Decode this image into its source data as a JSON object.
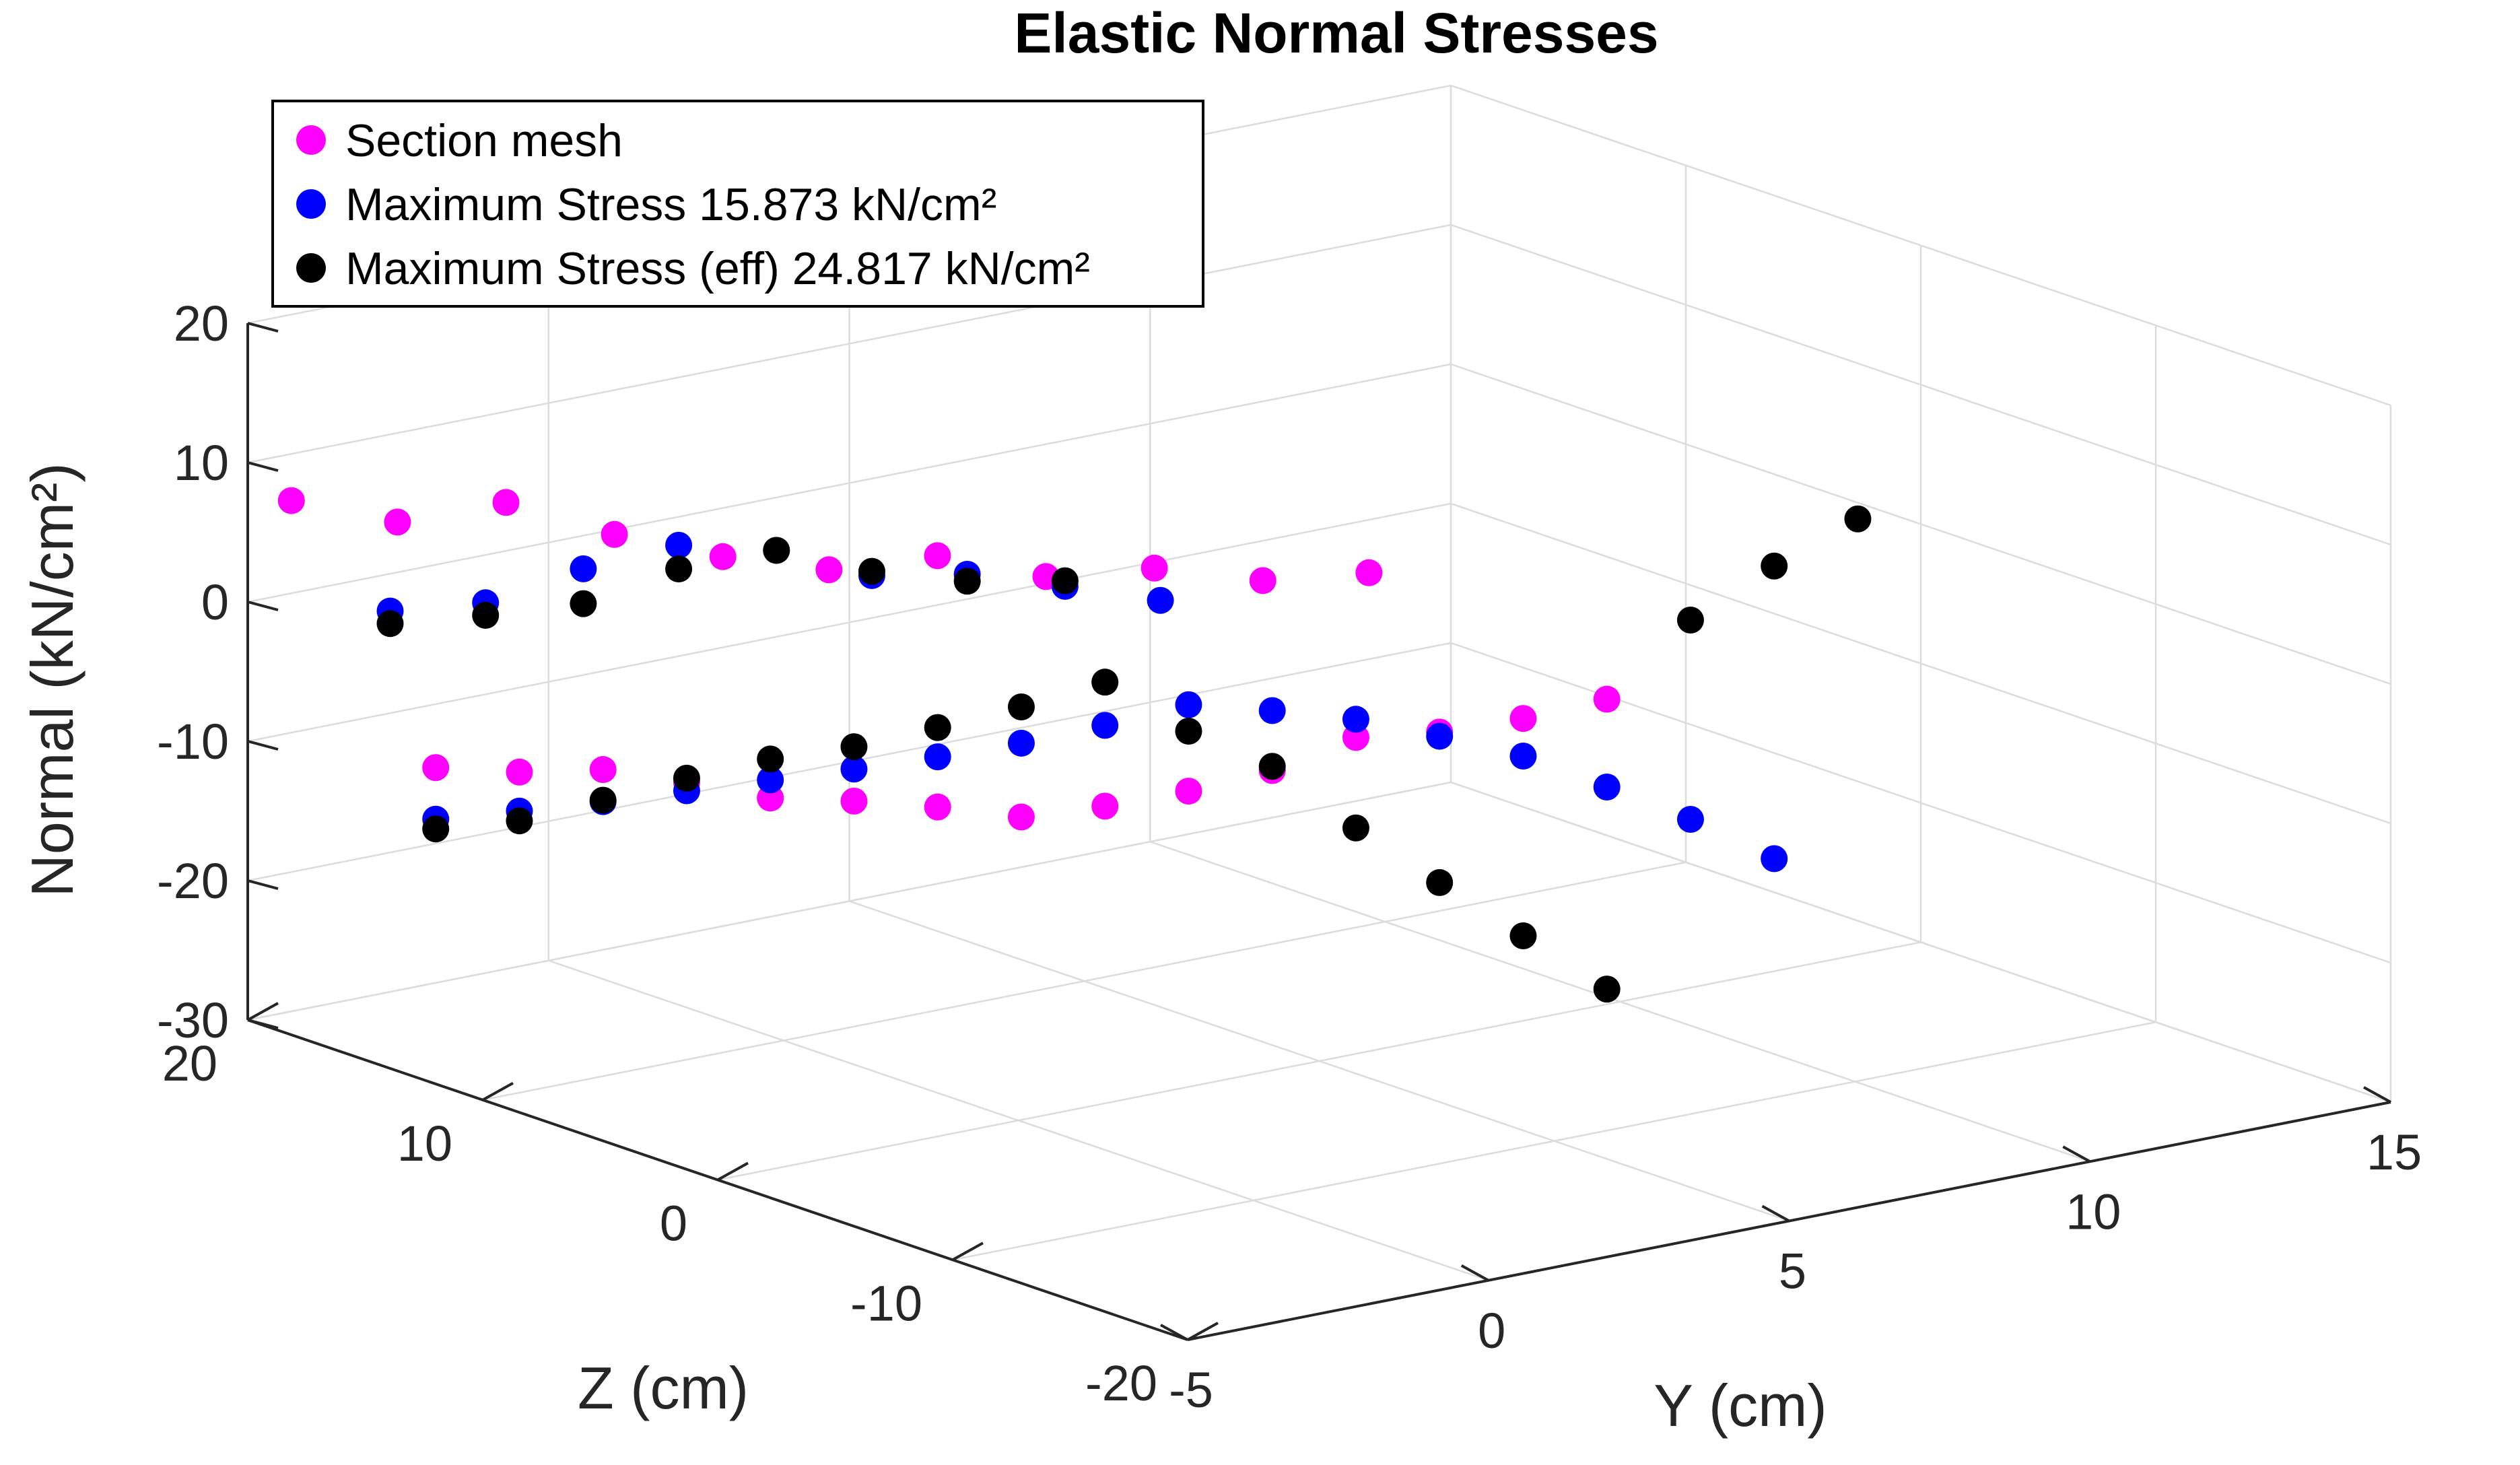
{
  "chart_data": {
    "type": "scatter3d",
    "title": "Elastic Normal Stresses",
    "xlabel": "Y (cm)",
    "ylabel": "Z (cm)",
    "zlabel": "Normal (kN/cm²)",
    "xlim": [
      -5,
      15
    ],
    "ylim": [
      -20,
      20
    ],
    "zlim": [
      -30,
      20
    ],
    "x_ticks": [
      "-5",
      "0",
      "5",
      "10",
      "15"
    ],
    "y_ticks": [
      "-20",
      "-10",
      "0",
      "10",
      "20"
    ],
    "z_ticks": [
      "-30",
      "-20",
      "-10",
      "0",
      "10",
      "20"
    ],
    "grid": true,
    "legend_position": "top-left",
    "series": [
      {
        "name": "Section mesh",
        "color": "#ff00ff",
        "points": [
          [
            -4.9,
            18.4,
            8.1
          ],
          [
            -3.8,
            16.7,
            6.6
          ],
          [
            -2.7,
            14.9,
            8.1
          ],
          [
            -1.6,
            13.1,
            5.9
          ],
          [
            -0.5,
            11.3,
            4.4
          ],
          [
            0.6,
            9.6,
            3.5
          ],
          [
            1.7,
            7.8,
            4.6
          ],
          [
            2.8,
            6.0,
            3.2
          ],
          [
            3.9,
            4.2,
            3.9
          ],
          [
            5.0,
            2.4,
            3.1
          ],
          [
            6.1,
            0.7,
            3.7
          ],
          [
            -5.0,
            12.0,
            -7.3
          ],
          [
            -4.0,
            11.0,
            -7.9
          ],
          [
            -3.0,
            10.0,
            -8.0
          ],
          [
            -2.0,
            9.0,
            -9.2
          ],
          [
            -1.0,
            8.0,
            -10.6
          ],
          [
            0.0,
            7.0,
            -11.1
          ],
          [
            1.0,
            6.0,
            -11.8
          ],
          [
            2.0,
            5.0,
            -12.8
          ],
          [
            3.0,
            4.0,
            -12.3
          ],
          [
            4.0,
            3.0,
            -11.5
          ],
          [
            5.0,
            2.0,
            -10.3
          ],
          [
            6.0,
            1.0,
            -8.2
          ],
          [
            7.0,
            0.0,
            -8.1
          ],
          [
            8.0,
            -1.0,
            -7.4
          ],
          [
            9.0,
            -2.0,
            -6.3
          ]
        ]
      },
      {
        "name": "Maximum Stress 15.873 kN/cm²",
        "color": "#0000ff",
        "points": [
          [
            -4.0,
            16.5,
            0.5
          ],
          [
            -3.0,
            15.0,
            1.1
          ],
          [
            -2.0,
            13.4,
            3.6
          ],
          [
            -1.0,
            11.9,
            5.3
          ],
          [
            0.0,
            10.3,
            5.0
          ],
          [
            1.0,
            8.8,
            3.2
          ],
          [
            2.0,
            7.3,
            3.3
          ],
          [
            3.0,
            5.7,
            2.5
          ],
          [
            4.0,
            4.2,
            1.5
          ],
          [
            -5.0,
            12.0,
            -11.0
          ],
          [
            -4.0,
            11.0,
            -10.7
          ],
          [
            -3.0,
            10.0,
            -10.3
          ],
          [
            -2.0,
            9.0,
            -9.8
          ],
          [
            -1.0,
            8.0,
            -9.3
          ],
          [
            0.0,
            7.0,
            -8.8
          ],
          [
            1.0,
            6.0,
            -8.2
          ],
          [
            2.0,
            5.0,
            -7.5
          ],
          [
            3.0,
            4.0,
            -6.5
          ],
          [
            4.0,
            3.0,
            -5.3
          ],
          [
            5.0,
            2.0,
            -6.0
          ],
          [
            6.0,
            1.0,
            -6.9
          ],
          [
            7.0,
            0.0,
            -8.4
          ],
          [
            8.0,
            -1.0,
            -10.1
          ],
          [
            9.0,
            -2.0,
            -12.6
          ],
          [
            10.0,
            -3.0,
            -15.2
          ],
          [
            11.0,
            -4.0,
            -18.3
          ]
        ]
      },
      {
        "name": "Maximum Stress (eff) 24.817 kN/cm²",
        "color": "#000000",
        "points": [
          [
            -4.0,
            16.5,
            -0.4
          ],
          [
            -3.0,
            15.0,
            0.2
          ],
          [
            -2.0,
            13.4,
            1.1
          ],
          [
            -1.0,
            11.9,
            3.6
          ],
          [
            0.0,
            10.3,
            5.0
          ],
          [
            1.0,
            8.8,
            3.5
          ],
          [
            2.0,
            7.3,
            2.8
          ],
          [
            3.0,
            5.7,
            2.9
          ],
          [
            -5.0,
            12.0,
            -11.7
          ],
          [
            -4.0,
            11.0,
            -11.4
          ],
          [
            -3.0,
            10.0,
            -10.2
          ],
          [
            -2.0,
            9.0,
            -8.9
          ],
          [
            -1.0,
            8.0,
            -7.8
          ],
          [
            0.0,
            7.0,
            -7.2
          ],
          [
            1.0,
            6.0,
            -6.1
          ],
          [
            2.0,
            5.0,
            -4.9
          ],
          [
            3.0,
            4.0,
            -3.4
          ],
          [
            4.0,
            3.0,
            -7.2
          ],
          [
            5.0,
            2.0,
            -10.0
          ],
          [
            6.0,
            1.0,
            -14.7
          ],
          [
            7.0,
            0.0,
            -18.9
          ],
          [
            8.0,
            -1.0,
            -23.0
          ],
          [
            9.0,
            -2.0,
            -27.1
          ],
          [
            10.0,
            -3.0,
            -0.9
          ],
          [
            11.0,
            -4.0,
            2.7
          ],
          [
            12.0,
            -5.0,
            5.8
          ]
        ]
      }
    ]
  }
}
